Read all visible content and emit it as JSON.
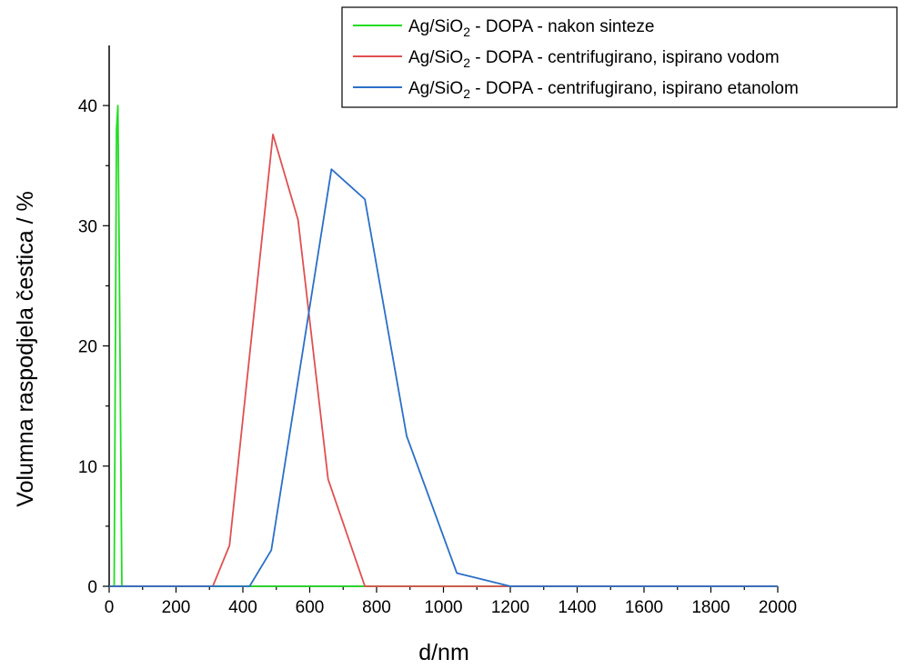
{
  "chart_data": {
    "type": "line",
    "xlabel": "d/nm",
    "ylabel": "Volumna raspodjela čestica / %",
    "xlim": [
      0,
      2000
    ],
    "ylim": [
      0,
      45
    ],
    "xticks": [
      0,
      200,
      400,
      600,
      800,
      1000,
      1200,
      1400,
      1600,
      1800,
      2000
    ],
    "yticks": [
      0,
      10,
      20,
      30,
      40
    ],
    "legend_position": "top-right",
    "grid": false,
    "series": [
      {
        "name_parts": [
          "Ag/SiO",
          "2",
          " - DOPA - nakon sinteze"
        ],
        "color": "#22dd22",
        "points": [
          [
            0,
            0
          ],
          [
            15,
            0
          ],
          [
            22,
            38
          ],
          [
            26,
            40
          ],
          [
            30,
            28
          ],
          [
            38,
            0
          ],
          [
            300,
            0
          ],
          [
            800,
            0
          ],
          [
            2000,
            0
          ]
        ]
      },
      {
        "name_parts": [
          "Ag/SiO",
          "2",
          " - DOPA - centrifugirano, ispirano vodom"
        ],
        "color": "#e05050",
        "points": [
          [
            0,
            0
          ],
          [
            310,
            0
          ],
          [
            360,
            3.4
          ],
          [
            490,
            37.6
          ],
          [
            565,
            30.5
          ],
          [
            655,
            8.9
          ],
          [
            765,
            0
          ],
          [
            2000,
            0
          ]
        ]
      },
      {
        "name_parts": [
          "Ag/SiO",
          "2",
          " - DOPA - centrifugirano, ispirano etanolom"
        ],
        "color": "#2a6fc8",
        "points": [
          [
            0,
            0
          ],
          [
            420,
            0
          ],
          [
            485,
            3.0
          ],
          [
            665,
            34.7
          ],
          [
            765,
            32.2
          ],
          [
            890,
            12.5
          ],
          [
            1040,
            1.1
          ],
          [
            1200,
            0
          ],
          [
            2000,
            0
          ]
        ]
      }
    ]
  }
}
